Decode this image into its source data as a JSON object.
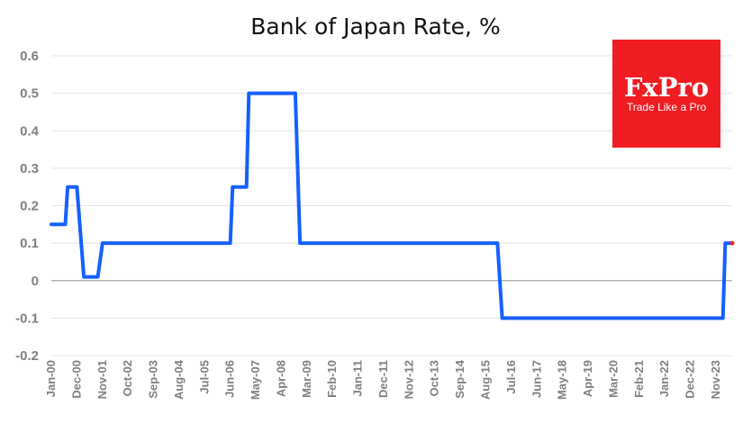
{
  "colors": {
    "line": "#1560ff",
    "last_point": "#e8262e",
    "logo_bg": "#ef1c22",
    "grid": "#e3e3e3",
    "tick": "#7f7f7f"
  },
  "logo": {
    "name": "FxPro",
    "tagline": "Trade Like a Pro"
  },
  "chart_data": {
    "type": "line",
    "title": "Bank of Japan Rate, %",
    "xlabel": "",
    "ylabel": "",
    "ylim": [
      -0.2,
      0.6
    ],
    "yticks": [
      "0.6",
      "0.5",
      "0.4",
      "0.3",
      "0.2",
      "0.1",
      "0",
      "-0.1",
      "-0.2"
    ],
    "xticks": [
      "Jan-00",
      "Dec-00",
      "Nov-01",
      "Oct-02",
      "Sep-03",
      "Aug-04",
      "Jul-05",
      "Jun-06",
      "May-07",
      "Apr-08",
      "Mar-09",
      "Feb-10",
      "Jan-11",
      "Dec-11",
      "Nov-12",
      "Oct-13",
      "Sep-14",
      "Aug-15",
      "Jul-16",
      "Jun-17",
      "May-18",
      "Apr-19",
      "Mar-20",
      "Feb-21",
      "Jan-22",
      "Dec-22",
      "Nov-23"
    ],
    "grid": true,
    "series": [
      {
        "points": [
          [
            "Jan-00",
            0.15
          ],
          [
            "Jul-00",
            0.15
          ],
          [
            "Aug-00",
            0.25
          ],
          [
            "Dec-00",
            0.25
          ],
          [
            "Mar-01",
            0.01
          ],
          [
            "Sep-01",
            0.01
          ],
          [
            "Nov-01",
            0.1
          ],
          [
            "Jun-06",
            0.1
          ],
          [
            "Jul-06",
            0.25
          ],
          [
            "Jan-07",
            0.25
          ],
          [
            "Feb-07",
            0.5
          ],
          [
            "Oct-08",
            0.5
          ],
          [
            "Dec-08",
            0.1
          ],
          [
            "Jan-16",
            0.1
          ],
          [
            "Mar-16",
            -0.1
          ],
          [
            "Feb-24",
            -0.1
          ],
          [
            "Mar-24",
            0.1
          ],
          [
            "Jun-24",
            0.1
          ]
        ]
      }
    ]
  }
}
